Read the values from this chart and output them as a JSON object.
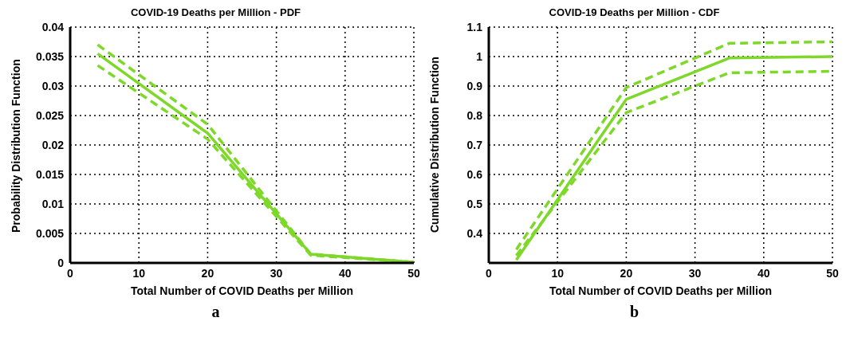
{
  "chart_data": [
    {
      "type": "line",
      "title": "COVID-19 Deaths per Million - PDF",
      "xlabel": "Total Number of COVID Deaths per Million",
      "ylabel": "Probability Distribution Function",
      "x": [
        4,
        20,
        35,
        50
      ],
      "series": [
        {
          "color": "#7ed82a",
          "line_style": "solid",
          "values": [
            0.0355,
            0.022,
            0.0015,
            0.0001
          ]
        },
        {
          "color": "#7ed82a",
          "line_style": "dashed",
          "values": [
            0.037,
            0.0235,
            0.0015,
            0.0001
          ]
        },
        {
          "color": "#7ed82a",
          "line_style": "dashed",
          "values": [
            0.0335,
            0.021,
            0.0013,
            0.0001
          ]
        }
      ],
      "xlim": [
        0,
        50
      ],
      "xticks": [
        0,
        10,
        20,
        30,
        40,
        50
      ],
      "ylim": [
        0,
        0.04
      ],
      "yticks": [
        0,
        0.005,
        0.01,
        0.015,
        0.02,
        0.025,
        0.03,
        0.035,
        0.04
      ],
      "grid": true,
      "marker": "none",
      "annotations": [
        "a"
      ]
    },
    {
      "type": "line",
      "title": "COVID-19 Deaths per Million - CDF",
      "xlabel": "Total Number of COVID Deaths per Million",
      "ylabel": "Cumulative Distribution Function",
      "x": [
        4,
        20,
        35,
        50
      ],
      "series": [
        {
          "color": "#7ed82a",
          "line_style": "solid",
          "values": [
            0.31,
            0.855,
            0.995,
            1.0
          ]
        },
        {
          "color": "#7ed82a",
          "line_style": "dashed",
          "values": [
            0.345,
            0.895,
            1.045,
            1.05
          ]
        },
        {
          "color": "#7ed82a",
          "line_style": "dashed",
          "values": [
            0.325,
            0.81,
            0.945,
            0.95
          ]
        }
      ],
      "xlim": [
        0,
        50
      ],
      "xticks": [
        0,
        10,
        20,
        30,
        40,
        50
      ],
      "ylim": [
        0.3,
        1.1
      ],
      "yticks": [
        0.4,
        0.5,
        0.6,
        0.7,
        0.8,
        0.9,
        1,
        1.1
      ],
      "grid": true,
      "marker": "none",
      "annotations": [
        "b"
      ]
    }
  ]
}
